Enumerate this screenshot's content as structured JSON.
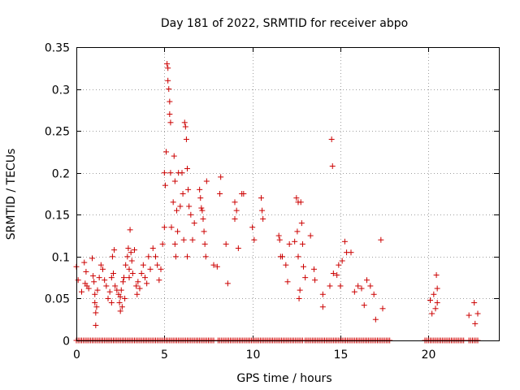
{
  "chart_data": {
    "type": "scatter",
    "title": "Day 181 of 2022, SRMTID for receiver abpo",
    "xlabel": "GPS time / hours",
    "ylabel": "SRMTID / TECUs",
    "xlim": [
      0,
      24
    ],
    "ylim": [
      0,
      0.35
    ],
    "xticks": [
      "0",
      "5",
      "10",
      "15",
      "20"
    ],
    "xtick_values": [
      0,
      5,
      10,
      15,
      20
    ],
    "yticks": [
      "0",
      "0.05",
      "0.1",
      "0.15",
      "0.2",
      "0.25",
      "0.3",
      "0.35"
    ],
    "ytick_values": [
      0,
      0.05,
      0.1,
      0.15,
      0.2,
      0.25,
      0.3,
      0.35
    ],
    "grid": true,
    "marker": "+",
    "color": "#cc0000",
    "series": [
      {
        "name": "SRMTID",
        "points": [
          [
            0.0,
            0.088
          ],
          [
            0.1,
            0.072
          ],
          [
            0.3,
            0.058
          ],
          [
            0.45,
            0.093
          ],
          [
            0.5,
            0.068
          ],
          [
            0.55,
            0.082
          ],
          [
            0.6,
            0.065
          ],
          [
            0.7,
            0.062
          ],
          [
            0.9,
            0.098
          ],
          [
            0.95,
            0.077
          ],
          [
            1.0,
            0.07
          ],
          [
            1.05,
            0.055
          ],
          [
            1.05,
            0.045
          ],
          [
            1.1,
            0.033
          ],
          [
            1.1,
            0.018
          ],
          [
            1.15,
            0.04
          ],
          [
            1.2,
            0.06
          ],
          [
            1.3,
            0.075
          ],
          [
            1.4,
            0.09
          ],
          [
            1.5,
            0.085
          ],
          [
            1.6,
            0.072
          ],
          [
            1.7,
            0.065
          ],
          [
            1.8,
            0.05
          ],
          [
            1.9,
            0.058
          ],
          [
            2.0,
            0.075
          ],
          [
            2.0,
            0.045
          ],
          [
            2.05,
            0.1
          ],
          [
            2.1,
            0.08
          ],
          [
            2.15,
            0.108
          ],
          [
            2.2,
            0.065
          ],
          [
            2.3,
            0.06
          ],
          [
            2.4,
            0.055
          ],
          [
            2.45,
            0.045
          ],
          [
            2.5,
            0.035
          ],
          [
            2.5,
            0.052
          ],
          [
            2.55,
            0.06
          ],
          [
            2.6,
            0.04
          ],
          [
            2.65,
            0.07
          ],
          [
            2.7,
            0.075
          ],
          [
            2.75,
            0.05
          ],
          [
            2.8,
            0.09
          ],
          [
            2.9,
            0.1
          ],
          [
            2.95,
            0.11
          ],
          [
            3.0,
            0.085
          ],
          [
            3.0,
            0.075
          ],
          [
            3.05,
            0.132
          ],
          [
            3.1,
            0.105
          ],
          [
            3.15,
            0.095
          ],
          [
            3.2,
            0.08
          ],
          [
            3.3,
            0.108
          ],
          [
            3.4,
            0.065
          ],
          [
            3.45,
            0.055
          ],
          [
            3.5,
            0.07
          ],
          [
            3.6,
            0.062
          ],
          [
            3.7,
            0.08
          ],
          [
            3.8,
            0.09
          ],
          [
            3.9,
            0.075
          ],
          [
            4.0,
            0.068
          ],
          [
            4.1,
            0.1
          ],
          [
            4.2,
            0.085
          ],
          [
            4.35,
            0.11
          ],
          [
            4.5,
            0.1
          ],
          [
            4.6,
            0.09
          ],
          [
            4.7,
            0.072
          ],
          [
            4.8,
            0.085
          ],
          [
            4.9,
            0.115
          ],
          [
            5.0,
            0.135
          ],
          [
            5.0,
            0.2
          ],
          [
            5.05,
            0.185
          ],
          [
            5.1,
            0.225
          ],
          [
            5.15,
            0.33
          ],
          [
            5.2,
            0.325
          ],
          [
            5.2,
            0.31
          ],
          [
            5.25,
            0.3
          ],
          [
            5.3,
            0.285
          ],
          [
            5.3,
            0.27
          ],
          [
            5.35,
            0.26
          ],
          [
            5.35,
            0.2
          ],
          [
            5.4,
            0.135
          ],
          [
            5.5,
            0.165
          ],
          [
            5.55,
            0.22
          ],
          [
            5.6,
            0.19
          ],
          [
            5.6,
            0.115
          ],
          [
            5.65,
            0.1
          ],
          [
            5.7,
            0.155
          ],
          [
            5.75,
            0.13
          ],
          [
            5.8,
            0.2
          ],
          [
            5.9,
            0.16
          ],
          [
            6.0,
            0.2
          ],
          [
            6.05,
            0.175
          ],
          [
            6.1,
            0.12
          ],
          [
            6.15,
            0.26
          ],
          [
            6.2,
            0.255
          ],
          [
            6.25,
            0.24
          ],
          [
            6.3,
            0.205
          ],
          [
            6.3,
            0.1
          ],
          [
            6.35,
            0.18
          ],
          [
            6.4,
            0.16
          ],
          [
            6.5,
            0.15
          ],
          [
            6.6,
            0.12
          ],
          [
            6.7,
            0.14
          ],
          [
            7.0,
            0.18
          ],
          [
            7.05,
            0.17
          ],
          [
            7.1,
            0.158
          ],
          [
            7.15,
            0.155
          ],
          [
            7.2,
            0.145
          ],
          [
            7.25,
            0.13
          ],
          [
            7.3,
            0.115
          ],
          [
            7.35,
            0.1
          ],
          [
            7.4,
            0.19
          ],
          [
            7.8,
            0.09
          ],
          [
            8.0,
            0.088
          ],
          [
            8.15,
            0.175
          ],
          [
            8.2,
            0.195
          ],
          [
            8.5,
            0.115
          ],
          [
            8.6,
            0.068
          ],
          [
            9.0,
            0.145
          ],
          [
            9.0,
            0.165
          ],
          [
            9.1,
            0.155
          ],
          [
            9.2,
            0.11
          ],
          [
            9.4,
            0.175
          ],
          [
            9.5,
            0.175
          ],
          [
            10.0,
            0.135
          ],
          [
            10.1,
            0.12
          ],
          [
            10.5,
            0.17
          ],
          [
            10.55,
            0.155
          ],
          [
            10.6,
            0.145
          ],
          [
            11.5,
            0.125
          ],
          [
            11.55,
            0.12
          ],
          [
            11.6,
            0.1
          ],
          [
            11.7,
            0.1
          ],
          [
            11.9,
            0.09
          ],
          [
            12.0,
            0.07
          ],
          [
            12.1,
            0.115
          ],
          [
            12.4,
            0.118
          ],
          [
            12.5,
            0.17
          ],
          [
            12.55,
            0.13
          ],
          [
            12.6,
            0.165
          ],
          [
            12.6,
            0.1
          ],
          [
            12.65,
            0.05
          ],
          [
            12.7,
            0.06
          ],
          [
            12.75,
            0.165
          ],
          [
            12.8,
            0.14
          ],
          [
            12.85,
            0.115
          ],
          [
            12.9,
            0.088
          ],
          [
            13.0,
            0.075
          ],
          [
            13.3,
            0.125
          ],
          [
            13.5,
            0.085
          ],
          [
            13.55,
            0.072
          ],
          [
            14.0,
            0.055
          ],
          [
            14.0,
            0.04
          ],
          [
            14.4,
            0.065
          ],
          [
            14.5,
            0.24
          ],
          [
            14.55,
            0.208
          ],
          [
            14.6,
            0.08
          ],
          [
            14.8,
            0.078
          ],
          [
            14.9,
            0.09
          ],
          [
            15.0,
            0.065
          ],
          [
            15.1,
            0.095
          ],
          [
            15.25,
            0.118
          ],
          [
            15.35,
            0.105
          ],
          [
            15.6,
            0.105
          ],
          [
            15.8,
            0.058
          ],
          [
            16.0,
            0.065
          ],
          [
            16.2,
            0.062
          ],
          [
            16.35,
            0.042
          ],
          [
            16.5,
            0.072
          ],
          [
            16.7,
            0.065
          ],
          [
            16.9,
            0.055
          ],
          [
            17.0,
            0.025
          ],
          [
            17.3,
            0.12
          ],
          [
            17.4,
            0.038
          ],
          [
            20.1,
            0.048
          ],
          [
            20.2,
            0.032
          ],
          [
            20.3,
            0.055
          ],
          [
            20.4,
            0.038
          ],
          [
            20.45,
            0.078
          ],
          [
            20.5,
            0.062
          ],
          [
            20.5,
            0.045
          ],
          [
            22.3,
            0.03
          ],
          [
            22.6,
            0.045
          ],
          [
            22.65,
            0.02
          ],
          [
            22.8,
            0.032
          ]
        ]
      }
    ],
    "zero_band": {
      "value": 0,
      "x_ranges": [
        [
          0,
          7.8
        ],
        [
          8.05,
          12.9
        ],
        [
          13.0,
          17.8
        ],
        [
          19.8,
          22.0
        ],
        [
          22.3,
          22.8
        ]
      ]
    }
  }
}
